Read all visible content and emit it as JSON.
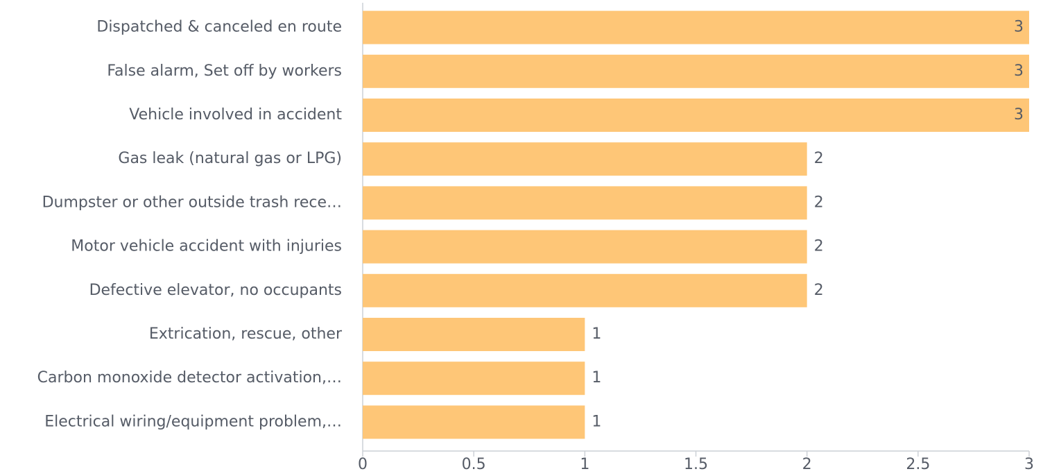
{
  "chart_data": {
    "type": "bar",
    "orientation": "horizontal",
    "categories": [
      "Dispatched & canceled en route",
      "False alarm, Set off by workers",
      "Vehicle involved in accident",
      "Gas leak (natural gas or LPG)",
      "Dumpster or other outside trash rece…",
      "Motor vehicle accident with injuries",
      "Defective elevator, no occupants",
      "Extrication, rescue, other",
      "Carbon monoxide detector activation,…",
      "Electrical wiring/equipment problem,…"
    ],
    "values": [
      3,
      3,
      3,
      2,
      2,
      2,
      2,
      1,
      1,
      1
    ],
    "color": "#fec677",
    "xlim": [
      0,
      3
    ],
    "xticks": [
      0,
      0.5,
      1,
      1.5,
      2,
      2.5,
      3
    ],
    "grid": false
  }
}
